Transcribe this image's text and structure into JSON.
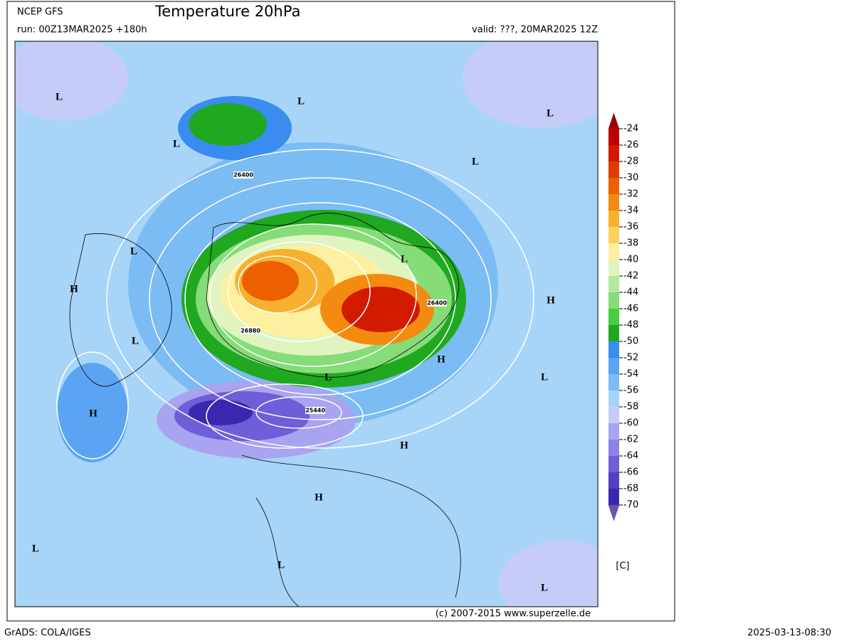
{
  "header": {
    "model": "NCEP GFS",
    "title": "Temperature 20hPa",
    "run": "run: 00Z13MAR2025 +180h",
    "valid": "valid: ???, 20MAR2025 12Z"
  },
  "map": {
    "pressure_labels": [
      "L",
      "L",
      "L",
      "L",
      "L",
      "L",
      "L",
      "H",
      "H",
      "L",
      "H",
      "L",
      "L",
      "H",
      "H",
      "H",
      "L",
      "L",
      "L"
    ],
    "contour_labels": [
      "26400",
      "26400",
      "26880",
      "25440"
    ]
  },
  "colorbar": {
    "levels": [
      -24,
      -26,
      -28,
      -30,
      -32,
      -34,
      -36,
      -38,
      -40,
      -42,
      -44,
      -46,
      -48,
      -50,
      -52,
      -54,
      -56,
      -58,
      -60,
      -62,
      -64,
      -66,
      -68,
      -70
    ],
    "colors": [
      "#c00000",
      "#d21a00",
      "#e03c00",
      "#ec6000",
      "#f48a10",
      "#f8b030",
      "#fbd060",
      "#fdf0a0",
      "#e0f4c0",
      "#b4eaa0",
      "#86dc78",
      "#4ccc40",
      "#20a820",
      "#3a8cf0",
      "#5aa4f2",
      "#7cbcf4",
      "#a4d4f8",
      "#c6ccf8",
      "#a8a4f0",
      "#8c82e8",
      "#6e5ed8",
      "#5040c8",
      "#3828b0"
    ],
    "above_color": "#a00000",
    "below_color": "#7050b0",
    "unit": "[C]"
  },
  "copyright": "(c) 2007-2015 www.superzelle.de",
  "footer": {
    "left": "GrADS: COLA/IGES",
    "right": "2025-03-13-08:30"
  }
}
